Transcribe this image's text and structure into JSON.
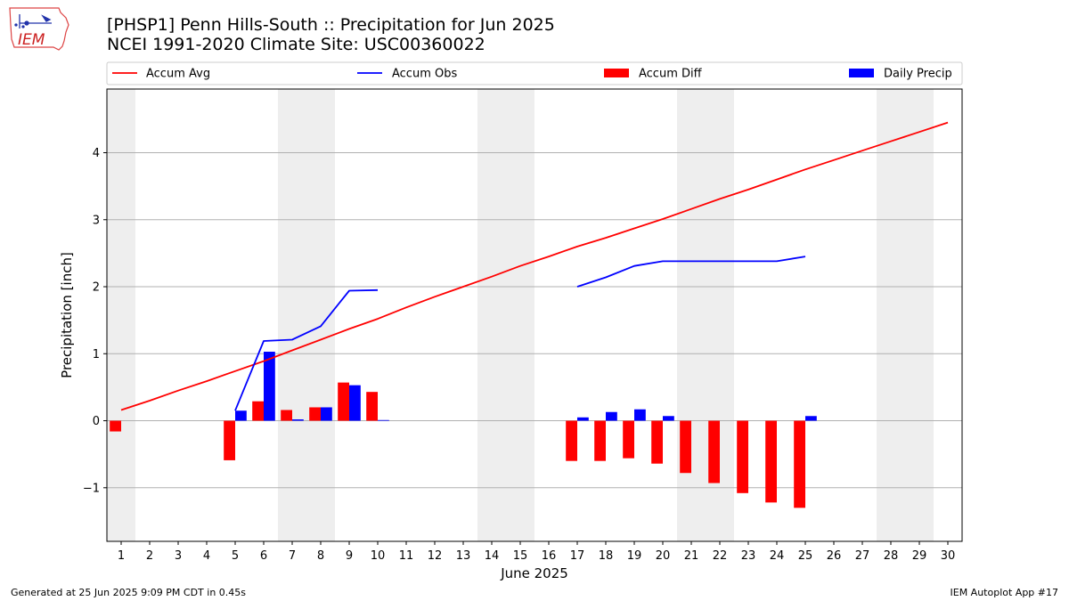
{
  "header": {
    "title_line1": "[PHSP1] Penn Hills-South :: Precipitation for Jun 2025",
    "title_line2": "NCEI 1991-2020 Climate Site: USC00360022"
  },
  "logo": {
    "text": "IEM",
    "icon": "iem-iowa-logo-icon"
  },
  "footer": {
    "left": "Generated at 25 Jun 2025 9:09 PM CDT in 0.45s",
    "right": "IEM Autoplot App #17"
  },
  "colors": {
    "avg": "#ff0000",
    "obs": "#0000ff",
    "diff": "#ff0000",
    "daily": "#0000ff",
    "weekend_shade": "#eeeeee",
    "grid": "#b0b0b0"
  },
  "chart_data": {
    "type": "bar",
    "xlabel": "June 2025",
    "ylabel": "Precipitation [inch]",
    "xlim": [
      0.5,
      30.5
    ],
    "ylim": [
      -1.8,
      4.95
    ],
    "yticks": [
      -1,
      0,
      1,
      2,
      3,
      4
    ],
    "ytick_labels": [
      "−1",
      "0",
      "1",
      "2",
      "3",
      "4"
    ],
    "days": [
      1,
      2,
      3,
      4,
      5,
      6,
      7,
      8,
      9,
      10,
      11,
      12,
      13,
      14,
      15,
      16,
      17,
      18,
      19,
      20,
      21,
      22,
      23,
      24,
      25,
      26,
      27,
      28,
      29,
      30
    ],
    "shaded_days": [
      1,
      7,
      8,
      14,
      15,
      21,
      22,
      28,
      29
    ],
    "grid": "horizontal",
    "legend_position": "top",
    "legend": [
      "Accum Avg",
      "Accum Obs",
      "Accum Diff",
      "Daily Precip"
    ],
    "series": [
      {
        "name": "Accum Avg",
        "kind": "line",
        "x": [
          1,
          2,
          3,
          4,
          5,
          6,
          7,
          8,
          9,
          10,
          11,
          12,
          13,
          14,
          15,
          16,
          17,
          18,
          19,
          20,
          21,
          22,
          23,
          24,
          25,
          26,
          27,
          28,
          29,
          30
        ],
        "values": [
          0.16,
          0.3,
          0.45,
          0.59,
          0.74,
          0.89,
          1.05,
          1.21,
          1.37,
          1.52,
          1.69,
          1.85,
          2.0,
          2.15,
          2.31,
          2.45,
          2.6,
          2.73,
          2.87,
          3.01,
          3.16,
          3.31,
          3.45,
          3.6,
          3.75,
          3.89,
          4.03,
          4.17,
          4.31,
          4.45
        ]
      },
      {
        "name": "Accum Obs",
        "kind": "line",
        "x": [
          5,
          6,
          7,
          8,
          9,
          10,
          null,
          17,
          18,
          19,
          20,
          21,
          22,
          23,
          24,
          25
        ],
        "values": [
          0.15,
          1.19,
          1.21,
          1.41,
          1.94,
          1.95,
          null,
          2.0,
          2.14,
          2.31,
          2.38,
          2.38,
          2.38,
          2.38,
          2.38,
          2.45
        ]
      },
      {
        "name": "Accum Diff",
        "kind": "bar",
        "x": [
          1,
          5,
          6,
          7,
          8,
          9,
          10,
          17,
          18,
          19,
          20,
          21,
          22,
          23,
          24,
          25
        ],
        "values": [
          -0.16,
          -0.59,
          0.29,
          0.16,
          0.2,
          0.57,
          0.43,
          -0.6,
          -0.6,
          -0.56,
          -0.64,
          -0.78,
          -0.93,
          -1.08,
          -1.22,
          -1.3
        ]
      },
      {
        "name": "Daily Precip",
        "kind": "bar",
        "x": [
          5,
          6,
          7,
          8,
          9,
          10,
          17,
          18,
          19,
          20,
          25
        ],
        "values": [
          0.15,
          1.03,
          0.02,
          0.2,
          0.53,
          0.01,
          0.05,
          0.13,
          0.17,
          0.07,
          0.07
        ]
      }
    ]
  }
}
